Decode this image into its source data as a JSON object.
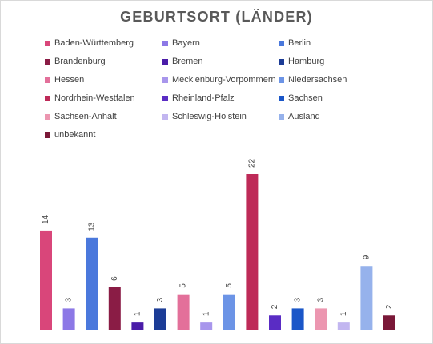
{
  "chart_data": {
    "type": "bar",
    "title": "GEBURTSORT (LÄNDER)",
    "xlabel": "",
    "ylabel": "",
    "ylim": [
      0,
      24
    ],
    "grid": false,
    "legend_position": "top",
    "categories": [
      "Baden-Württemberg",
      "Bayern",
      "Berlin",
      "Brandenburg",
      "Bremen",
      "Hamburg",
      "Hessen",
      "Mecklenburg-Vorpommern",
      "Niedersachsen",
      "Nordrhein-Westfalen",
      "Rheinland-Pfalz",
      "Sachsen",
      "Sachsen-Anhalt",
      "Schleswig-Holstein",
      "Ausland",
      "unbekannt"
    ],
    "values": [
      14,
      3,
      13,
      6,
      1,
      3,
      5,
      1,
      5,
      22,
      2,
      3,
      3,
      1,
      9,
      2
    ],
    "colors": [
      "#d9467a",
      "#8c78e6",
      "#4a78dc",
      "#8a1c45",
      "#4a1ca8",
      "#1c3c96",
      "#e3709a",
      "#a896ec",
      "#6c94e6",
      "#be2a58",
      "#5a2cc4",
      "#1a56c8",
      "#ec96b0",
      "#c2b6f0",
      "#96b2ec",
      "#7a1838"
    ]
  }
}
